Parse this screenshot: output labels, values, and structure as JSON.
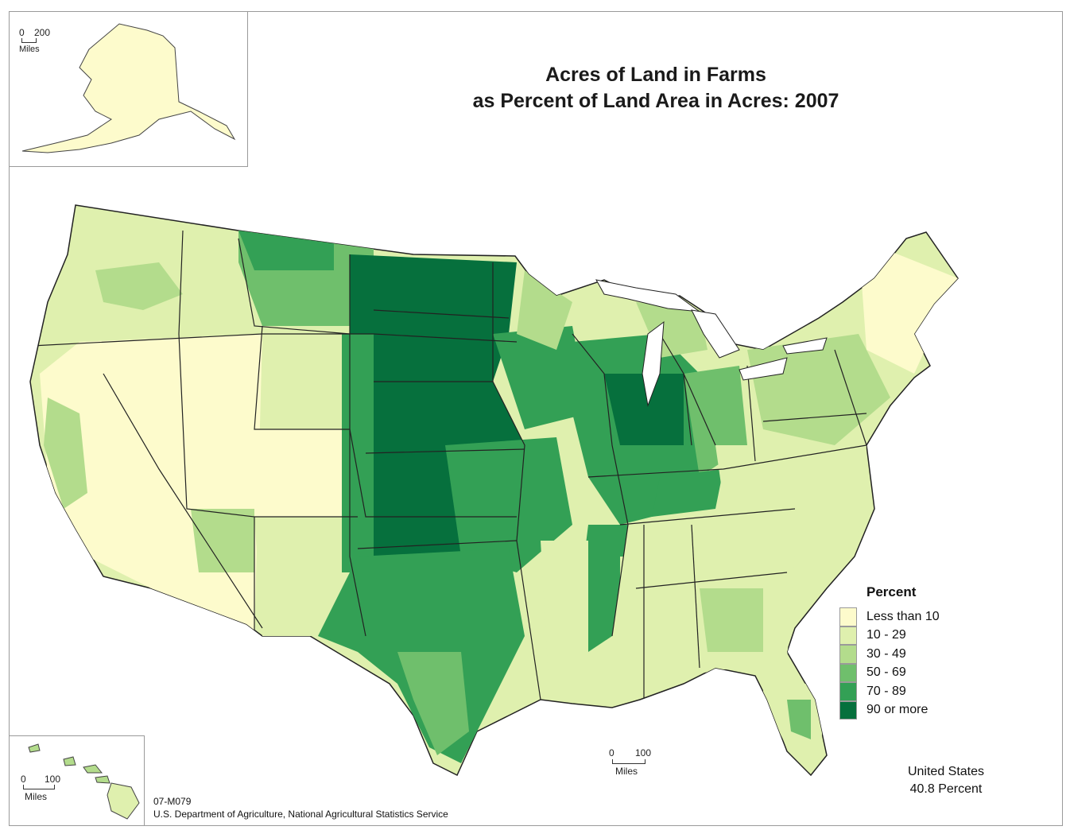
{
  "title_line1": "Acres of Land in Farms",
  "title_line2": "as Percent of Land Area in Acres:  2007",
  "legend": {
    "title": "Percent",
    "items": [
      {
        "label": "Less than 10",
        "color": "#fdfbcc"
      },
      {
        "label": "10 - 29",
        "color": "#dff0ae"
      },
      {
        "label": "30 - 49",
        "color": "#b3dc8c"
      },
      {
        "label": "50 - 69",
        "color": "#6fbf6c"
      },
      {
        "label": "70 - 89",
        "color": "#33a055"
      },
      {
        "label": "90 or more",
        "color": "#06703d"
      }
    ]
  },
  "alaska_scale": {
    "start": "0",
    "end": "200",
    "unit": "Miles"
  },
  "hawaii_scale": {
    "start": "0",
    "end": "100",
    "unit": "Miles"
  },
  "main_scale": {
    "start": "0",
    "end": "100",
    "unit": "Miles"
  },
  "us_total": {
    "label": "United States",
    "value": "40.8 Percent"
  },
  "map_id": "07-M079",
  "source": "U.S. Department of Agriculture, National Agricultural Statistics Service"
}
